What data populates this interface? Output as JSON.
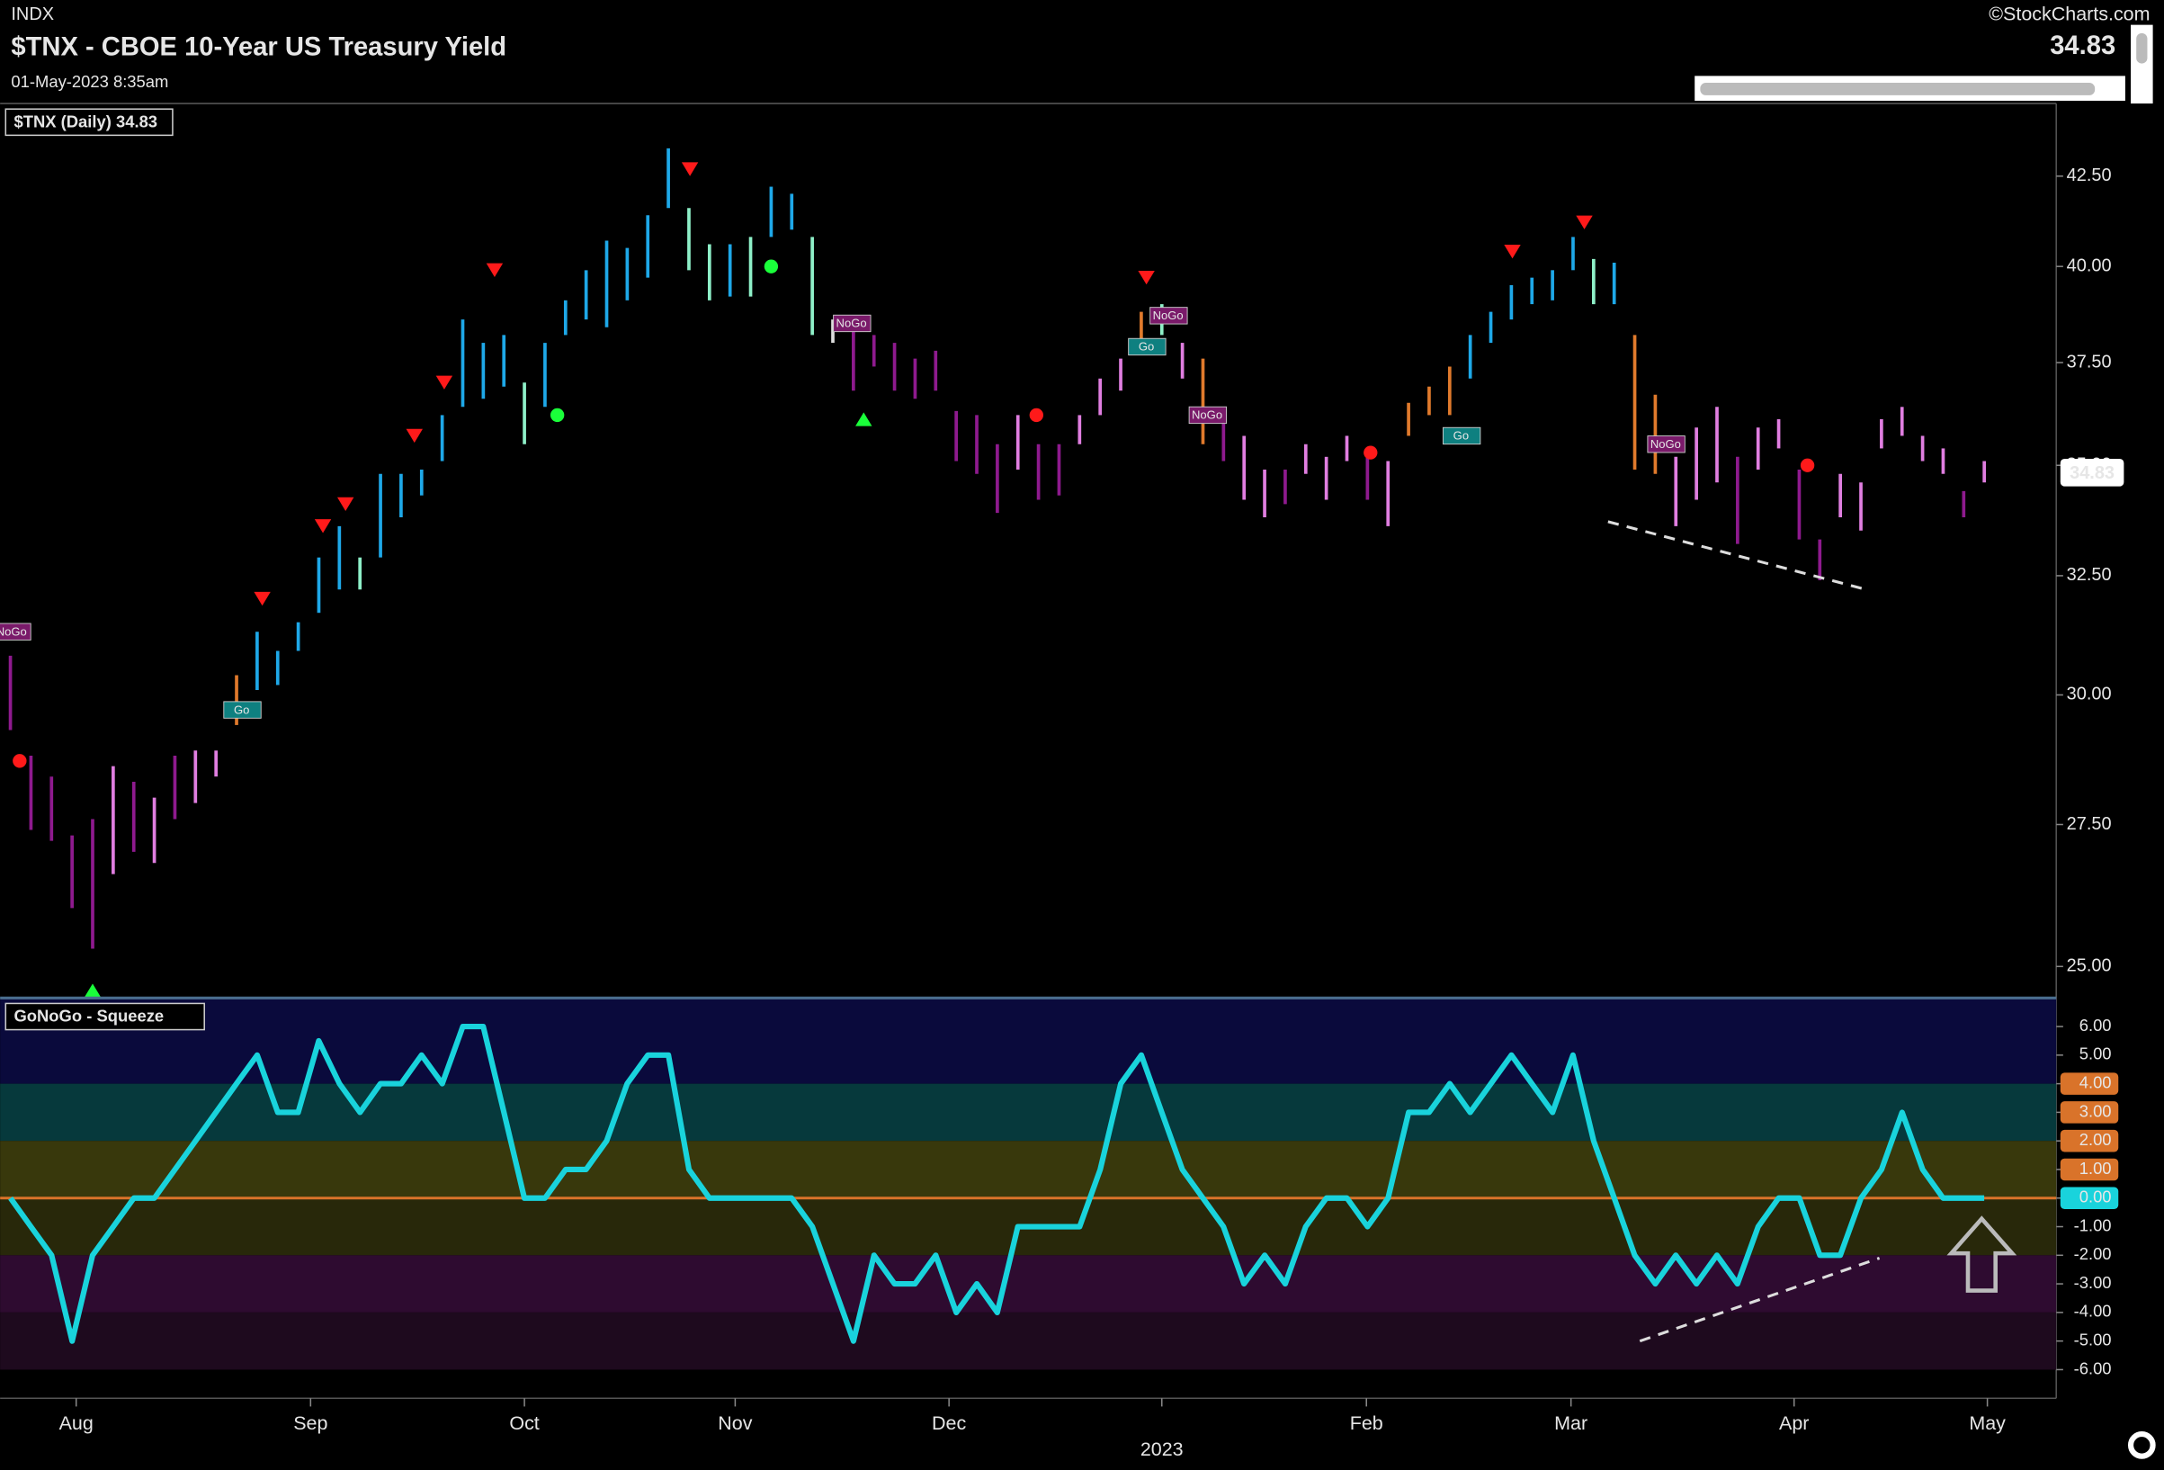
{
  "header": {
    "exchange": "INDX",
    "title": "$TNX - CBOE 10-Year US Treasury Yield",
    "timestamp": "01-May-2023 8:35am",
    "credit": "©StockCharts.com"
  },
  "chart_data": [
    {
      "type": "range",
      "legend": "$TNX (Daily) 34.83",
      "last": 34.83,
      "log_scale": true,
      "xlim": [
        0,
        200
      ],
      "ylim": [
        24.5,
        44.5
      ],
      "yticks": [
        {
          "value": 25,
          "label": "25.00"
        },
        {
          "value": 27.5,
          "label": "27.50"
        },
        {
          "value": 30,
          "label": "30.00"
        },
        {
          "value": 32.5,
          "label": "32.50"
        },
        {
          "value": 35,
          "label": "35.00"
        },
        {
          "value": 37.5,
          "label": "37.50"
        },
        {
          "value": 40,
          "label": "40.00"
        },
        {
          "value": 42.5,
          "label": "42.50"
        }
      ],
      "x": [
        1,
        3,
        5,
        7,
        9,
        11,
        13,
        15,
        17,
        19,
        21,
        23,
        25,
        27,
        29,
        31,
        33,
        35,
        37,
        39,
        41,
        43,
        45,
        47,
        49,
        51,
        53,
        55,
        57,
        59,
        61,
        63,
        65,
        67,
        69,
        71,
        73,
        75,
        77,
        79,
        81,
        83,
        85,
        87,
        89,
        91,
        93,
        95,
        97,
        99,
        101,
        103,
        105,
        107,
        109,
        111,
        113,
        115,
        117,
        119,
        121,
        123,
        125,
        127,
        129,
        131,
        133,
        135,
        137,
        139,
        141,
        143,
        145,
        147,
        149,
        151,
        153,
        155,
        157,
        159,
        161,
        163,
        165,
        167,
        169,
        171,
        173,
        175,
        177,
        179,
        181,
        183,
        185,
        187,
        189,
        191,
        193
      ],
      "highs": [
        30.8,
        28.8,
        28.4,
        27.3,
        27.6,
        28.6,
        28.3,
        28.0,
        28.8,
        28.9,
        28.9,
        30.4,
        31.3,
        30.9,
        31.5,
        32.9,
        33.6,
        32.9,
        34.8,
        34.8,
        34.9,
        36.2,
        38.6,
        38.0,
        38.2,
        37.0,
        38.0,
        39.1,
        39.9,
        40.7,
        40.5,
        41.4,
        43.3,
        41.6,
        40.6,
        40.6,
        40.8,
        42.2,
        42.0,
        40.8,
        38.6,
        38.4,
        38.2,
        38.0,
        37.6,
        37.8,
        36.3,
        36.2,
        35.5,
        36.2,
        35.5,
        35.5,
        36.2,
        37.1,
        37.6,
        38.8,
        39.0,
        38.0,
        37.6,
        36.2,
        35.7,
        34.9,
        34.9,
        35.5,
        35.2,
        35.7,
        35.2,
        35.1,
        36.5,
        36.9,
        37.4,
        38.2,
        38.8,
        39.5,
        39.7,
        39.9,
        40.8,
        40.2,
        40.1,
        38.2,
        36.7,
        35.2,
        35.9,
        36.4,
        35.2,
        35.9,
        36.1,
        34.9,
        33.3,
        34.8,
        34.6,
        36.1,
        36.4,
        35.7,
        35.4,
        34.4,
        35.1
      ],
      "lows": [
        29.3,
        27.4,
        27.2,
        26.0,
        25.3,
        26.6,
        27.0,
        26.8,
        27.6,
        27.9,
        28.4,
        29.4,
        30.1,
        30.2,
        30.9,
        31.7,
        32.2,
        32.2,
        32.9,
        33.8,
        34.3,
        35.1,
        36.4,
        36.6,
        36.9,
        35.5,
        36.4,
        38.2,
        38.6,
        38.4,
        39.1,
        39.7,
        41.6,
        39.9,
        39.1,
        39.2,
        39.2,
        40.8,
        41.0,
        38.2,
        38.0,
        36.8,
        37.4,
        36.8,
        36.6,
        36.8,
        35.1,
        34.8,
        33.9,
        34.9,
        34.2,
        34.3,
        35.5,
        36.2,
        36.8,
        37.8,
        38.2,
        37.1,
        35.5,
        35.1,
        34.2,
        33.8,
        34.1,
        34.8,
        34.2,
        35.1,
        34.2,
        33.6,
        35.7,
        36.2,
        36.2,
        37.1,
        38.0,
        38.6,
        39.0,
        39.1,
        39.9,
        39.0,
        39.0,
        34.9,
        34.8,
        33.6,
        34.2,
        34.6,
        33.2,
        34.9,
        35.4,
        33.3,
        32.4,
        33.8,
        33.5,
        35.4,
        35.7,
        35.1,
        34.8,
        33.8,
        34.6
      ],
      "colors": [
        "#8e1a8e",
        "#8e1a8e",
        "#8e1a8e",
        "#8e1a8e",
        "#8e1a8e",
        "#e07ee0",
        "#8e1a8e",
        "#e07ee0",
        "#8e1a8e",
        "#e07ee0",
        "#e07ee0",
        "#e07a2c",
        "#1ea8e8",
        "#1ea8e8",
        "#1ea8e8",
        "#1ea8e8",
        "#1ea8e8",
        "#8ef0c8",
        "#1ea8e8",
        "#1ea8e8",
        "#1ea8e8",
        "#1ea8e8",
        "#1ea8e8",
        "#1ea8e8",
        "#1ea8e8",
        "#8ef0c8",
        "#1ea8e8",
        "#1ea8e8",
        "#1ea8e8",
        "#1ea8e8",
        "#1ea8e8",
        "#1ea8e8",
        "#1ea8e8",
        "#8ef0c8",
        "#8ef0c8",
        "#1ea8e8",
        "#8ef0c8",
        "#1ea8e8",
        "#1ea8e8",
        "#8ef0c8",
        "#dddddd",
        "#8e1a8e",
        "#8e1a8e",
        "#8e1a8e",
        "#8e1a8e",
        "#8e1a8e",
        "#8e1a8e",
        "#8e1a8e",
        "#8e1a8e",
        "#e07ee0",
        "#8e1a8e",
        "#8e1a8e",
        "#e07ee0",
        "#e07ee0",
        "#e07ee0",
        "#e07a2c",
        "#8ef0c8",
        "#e07ee0",
        "#e07a2c",
        "#8e1a8e",
        "#e07ee0",
        "#e07ee0",
        "#8e1a8e",
        "#e07ee0",
        "#e07ee0",
        "#e07ee0",
        "#8e1a8e",
        "#e07ee0",
        "#e07a2c",
        "#e07a2c",
        "#e07a2c",
        "#1ea8e8",
        "#1ea8e8",
        "#1ea8e8",
        "#1ea8e8",
        "#1ea8e8",
        "#1ea8e8",
        "#8ef0c8",
        "#1ea8e8",
        "#e07a2c",
        "#e07a2c",
        "#e07ee0",
        "#e07ee0",
        "#e07ee0",
        "#8e1a8e",
        "#e07ee0",
        "#e07ee0",
        "#8e1a8e",
        "#8e1a8e",
        "#e07ee0",
        "#e07ee0",
        "#e07ee0",
        "#e07ee0",
        "#e07ee0",
        "#e07ee0",
        "#8e1a8e",
        "#e07ee0"
      ],
      "markers": [
        {
          "x": 25.5,
          "y": 32.0,
          "shape": "down",
          "color": "#ff1a1a"
        },
        {
          "x": 31.4,
          "y": 33.6,
          "shape": "down",
          "color": "#ff1a1a"
        },
        {
          "x": 33.6,
          "y": 34.1,
          "shape": "down",
          "color": "#ff1a1a"
        },
        {
          "x": 40.3,
          "y": 35.7,
          "shape": "down",
          "color": "#ff1a1a"
        },
        {
          "x": 43.2,
          "y": 37.0,
          "shape": "down",
          "color": "#ff1a1a"
        },
        {
          "x": 48.1,
          "y": 39.9,
          "shape": "down",
          "color": "#ff1a1a"
        },
        {
          "x": 67.1,
          "y": 42.7,
          "shape": "down",
          "color": "#ff1a1a"
        },
        {
          "x": 111.5,
          "y": 39.7,
          "shape": "down",
          "color": "#ff1a1a"
        },
        {
          "x": 147.1,
          "y": 40.4,
          "shape": "down",
          "color": "#ff1a1a"
        },
        {
          "x": 154.1,
          "y": 41.2,
          "shape": "down",
          "color": "#ff1a1a"
        },
        {
          "x": 1.9,
          "y": 28.7,
          "shape": "dot",
          "color": "#ff1a1a"
        },
        {
          "x": 100.8,
          "y": 36.2,
          "shape": "dot",
          "color": "#ff1a1a"
        },
        {
          "x": 117.6,
          "y": 36.2,
          "shape": "dot",
          "color": "#ff1a1a"
        },
        {
          "x": 133.3,
          "y": 35.3,
          "shape": "dot",
          "color": "#ff1a1a"
        },
        {
          "x": 175.8,
          "y": 35.0,
          "shape": "dot",
          "color": "#ff1a1a"
        },
        {
          "x": 54.2,
          "y": 36.2,
          "shape": "dot",
          "color": "#1aff3a"
        },
        {
          "x": 75.0,
          "y": 40.0,
          "shape": "dot",
          "color": "#1aff3a"
        },
        {
          "x": 9.0,
          "y": 24.6,
          "shape": "up",
          "color": "#1aff3a"
        },
        {
          "x": 84.0,
          "y": 36.1,
          "shape": "up",
          "color": "#1aff3a"
        }
      ],
      "labels": [
        {
          "text": "NoGo",
          "x": 1.1,
          "y": 31.3,
          "color": "#7a1a6a"
        },
        {
          "text": "Go",
          "x": 23.5,
          "y": 29.7,
          "color": "#0e8080"
        },
        {
          "text": "NoGo",
          "x": 82.8,
          "y": 38.5,
          "color": "#7a1a6a"
        },
        {
          "text": "NoGo",
          "x": 113.6,
          "y": 38.7,
          "color": "#7a1a6a"
        },
        {
          "text": "Go",
          "x": 111.5,
          "y": 37.9,
          "color": "#0e8080"
        },
        {
          "text": "NoGo",
          "x": 117.4,
          "y": 36.2,
          "color": "#7a1a6a"
        },
        {
          "text": "Go",
          "x": 142.1,
          "y": 35.7,
          "color": "#0e8080"
        },
        {
          "text": "NoGo",
          "x": 162.0,
          "y": 35.5,
          "color": "#7a1a6a"
        }
      ],
      "trendline": {
        "x": [
          156.4,
          181.5
        ],
        "y": [
          33.7,
          32.2
        ],
        "color": "#dddddd"
      }
    },
    {
      "type": "line",
      "legend": "GoNoGo - Squeeze",
      "color": "#19d3dc",
      "xlim": [
        0,
        200
      ],
      "ylim": [
        -7,
        7
      ],
      "xticks": [
        {
          "value": 7.4,
          "label": "Aug"
        },
        {
          "value": 30.2,
          "label": "Sep"
        },
        {
          "value": 51,
          "label": "Oct"
        },
        {
          "value": 71.5,
          "label": "Nov"
        },
        {
          "value": 92.3,
          "label": "Dec"
        },
        {
          "value": 113,
          "label": "2023"
        },
        {
          "value": 132.9,
          "label": "Feb"
        },
        {
          "value": 152.8,
          "label": "Mar"
        },
        {
          "value": 174.5,
          "label": "Apr"
        },
        {
          "value": 193.3,
          "label": "May"
        }
      ],
      "yticks": [
        {
          "value": 6,
          "label": "6.00"
        },
        {
          "value": 5,
          "label": "5.00"
        },
        {
          "value": 4,
          "label": "4.00",
          "box": "#d9732a"
        },
        {
          "value": 3,
          "label": "3.00",
          "box": "#d9732a"
        },
        {
          "value": 2,
          "label": "2.00",
          "box": "#d9732a"
        },
        {
          "value": 1,
          "label": "1.00",
          "box": "#d9732a"
        },
        {
          "value": 0,
          "label": "0.00",
          "box": "#19d3dc"
        },
        {
          "value": -1,
          "label": "-1.00"
        },
        {
          "value": -2,
          "label": "-2.00"
        },
        {
          "value": -3,
          "label": "-3.00"
        },
        {
          "value": -4,
          "label": "-4.00"
        },
        {
          "value": -5,
          "label": "-5.00"
        },
        {
          "value": -6,
          "label": "-6.00"
        }
      ],
      "bands": [
        {
          "from": 7,
          "to": 4,
          "color": "#0a0a3c"
        },
        {
          "from": 4,
          "to": 2,
          "color": "#06393c"
        },
        {
          "from": 2,
          "to": 0,
          "color": "#38380c"
        },
        {
          "from": 0,
          "to": -2,
          "color": "#28280a"
        },
        {
          "from": -2,
          "to": -4,
          "color": "#2e0b30"
        },
        {
          "from": -4,
          "to": -6,
          "color": "#1e0a1e"
        }
      ],
      "zero_line_color": "#d9732a",
      "x": [
        1,
        3,
        5,
        7,
        9,
        11,
        13,
        15,
        17,
        19,
        21,
        23,
        25,
        27,
        29,
        31,
        33,
        35,
        37,
        39,
        41,
        43,
        45,
        47,
        49,
        51,
        53,
        55,
        57,
        59,
        61,
        63,
        65,
        67,
        69,
        71,
        73,
        75,
        77,
        79,
        81,
        83,
        85,
        87,
        89,
        91,
        93,
        95,
        97,
        99,
        101,
        103,
        105,
        107,
        109,
        111,
        113,
        115,
        117,
        119,
        121,
        123,
        125,
        127,
        129,
        131,
        133,
        135,
        137,
        139,
        141,
        143,
        145,
        147,
        149,
        151,
        153,
        155,
        157,
        159,
        161,
        163,
        165,
        167,
        169,
        171,
        173,
        175,
        177,
        179,
        181,
        183,
        185,
        187,
        189,
        191,
        193
      ],
      "values": [
        0,
        -1,
        -2,
        -5,
        -2,
        -1,
        0,
        0,
        1,
        2,
        3,
        4,
        5,
        3,
        3,
        5.5,
        4,
        3,
        4,
        4,
        5,
        4,
        6,
        6,
        3,
        0,
        0,
        1,
        1,
        2,
        4,
        5,
        5,
        1,
        0,
        0,
        0,
        0,
        0,
        -1,
        -3,
        -5,
        -2,
        -3,
        -3,
        -2,
        -4,
        -3,
        -4,
        -1,
        -1,
        -1,
        -1,
        1,
        4,
        5,
        3,
        1,
        0,
        -1,
        -3,
        -2,
        -3,
        -1,
        0,
        0,
        -1,
        0,
        3,
        3,
        4,
        3,
        4,
        5,
        4,
        3,
        5,
        2,
        0,
        -2,
        -3,
        -2,
        -3,
        -2,
        -3,
        -1,
        0,
        0,
        -2,
        -2,
        0,
        1,
        3,
        1,
        0,
        0,
        0
      ],
      "trendline": {
        "x": [
          159.5,
          182.8
        ],
        "y": [
          -5.0,
          -2.1
        ],
        "color": "#dddddd"
      }
    }
  ]
}
